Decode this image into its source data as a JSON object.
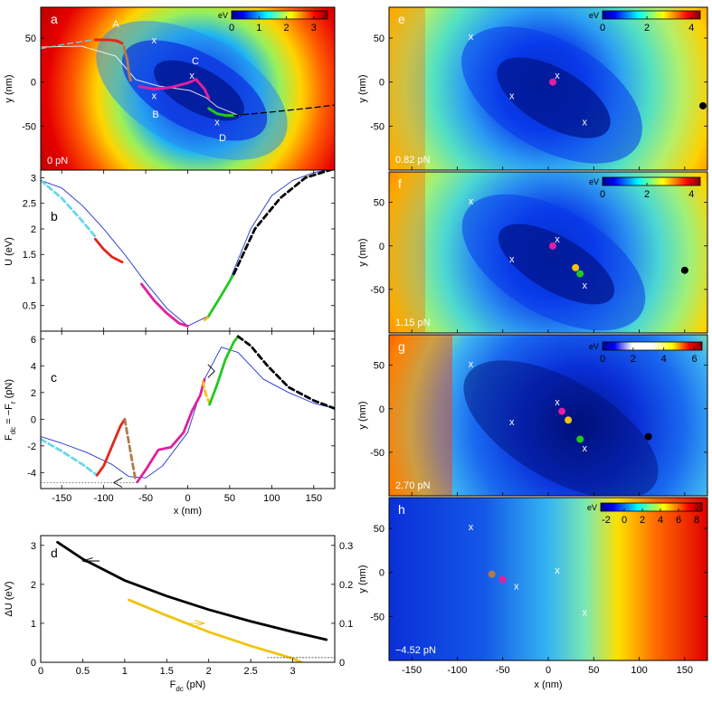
{
  "figure": {
    "left_x_axis": {
      "label": "x (nm)",
      "min": -175,
      "max": 175,
      "ticks": [
        -150,
        -100,
        -50,
        0,
        50,
        100,
        150
      ]
    },
    "right_x_axis": {
      "label": "x (nm)",
      "min": -175,
      "max": 175,
      "ticks": [
        -150,
        -100,
        -50,
        0,
        50,
        100,
        150
      ]
    },
    "map_y_axis": {
      "label": "y (nm)",
      "min": -100,
      "max": 85,
      "ticks": [
        50,
        0,
        -50
      ]
    }
  },
  "chart_data": [
    {
      "panel": "a",
      "type": "heatmap",
      "letter": "a",
      "force_label": "0 pN",
      "colorbar": {
        "unit": "eV",
        "ticks": [
          "0",
          "1",
          "2",
          "3"
        ],
        "min": 0,
        "max": 3.5
      },
      "point_labels": [
        "A",
        "B",
        "C",
        "D"
      ],
      "minima": [
        {
          "label": "A",
          "x": -40,
          "y": 48
        },
        {
          "label": "B",
          "x": -40,
          "y": -15
        },
        {
          "label": "C",
          "x": 5,
          "y": 8
        },
        {
          "label": "D",
          "x": 35,
          "y": -45
        }
      ],
      "paths": [
        {
          "name": "red",
          "color": "#e3261b",
          "x": [
            -110,
            -95,
            -85,
            -78
          ],
          "y": [
            48,
            48,
            47,
            44
          ]
        },
        {
          "name": "brown",
          "color": "#b07a4a",
          "x": [
            -76,
            -72,
            -70,
            -68
          ],
          "y": [
            40,
            25,
            10,
            2
          ]
        },
        {
          "name": "magenta",
          "color": "#e0209f",
          "x": [
            -58,
            -40,
            -20,
            0,
            10,
            20,
            25
          ],
          "y": [
            -5,
            -8,
            -6,
            -1,
            3,
            -8,
            -18
          ]
        },
        {
          "name": "green",
          "color": "#22c81d",
          "x": [
            25,
            35,
            45,
            55
          ],
          "y": [
            -30,
            -36,
            -38,
            -38
          ]
        },
        {
          "name": "dashed-black",
          "color": "#000000",
          "x": [
            55,
            100,
            150,
            175
          ],
          "y": [
            -38,
            -34,
            -29,
            -26
          ]
        },
        {
          "name": "dashed-cyan",
          "color": "#6ad6ea",
          "x": [
            -175,
            -140,
            -112
          ],
          "y": [
            38,
            44,
            48
          ]
        }
      ]
    },
    {
      "panel": "b",
      "type": "line",
      "letter": "b",
      "ylabel": "U (eV)",
      "ylim": [
        0,
        3.15
      ],
      "yticks": [
        "0.5",
        "1",
        "1.5",
        "2",
        "2.5",
        "3"
      ],
      "series": [
        {
          "name": "blue",
          "color": "#2233cc",
          "x": [
            -175,
            -150,
            -125,
            -100,
            -75,
            -50,
            -25,
            0,
            25,
            50,
            75,
            100,
            125,
            150,
            175
          ],
          "y": [
            2.95,
            2.8,
            2.45,
            2.0,
            1.5,
            0.95,
            0.45,
            0.1,
            0.3,
            1.0,
            2.0,
            2.65,
            2.95,
            3.1,
            3.18
          ]
        },
        {
          "name": "cyan-dashed",
          "color": "#6ad6ea",
          "x": [
            -175,
            -150,
            -128,
            -110
          ],
          "y": [
            2.95,
            2.6,
            2.2,
            1.85
          ]
        },
        {
          "name": "red",
          "color": "#e3261b",
          "x": [
            -110,
            -100,
            -90,
            -78
          ],
          "y": [
            1.8,
            1.6,
            1.45,
            1.35
          ]
        },
        {
          "name": "magenta",
          "color": "#e0209f",
          "x": [
            -55,
            -40,
            -25,
            -10,
            0
          ],
          "y": [
            0.92,
            0.6,
            0.35,
            0.15,
            0.1
          ]
        },
        {
          "name": "yellow",
          "color": "#f2c20f",
          "x": [
            20,
            25
          ],
          "y": [
            0.22,
            0.28
          ]
        },
        {
          "name": "green",
          "color": "#22c81d",
          "x": [
            25,
            40,
            55
          ],
          "y": [
            0.3,
            0.7,
            1.12
          ]
        },
        {
          "name": "black-dashed",
          "color": "#000000",
          "x": [
            55,
            80,
            110,
            140,
            175
          ],
          "y": [
            1.12,
            2.0,
            2.6,
            3.0,
            3.18
          ]
        }
      ]
    },
    {
      "panel": "c",
      "type": "line",
      "letter": "c",
      "ylabel_main": "F",
      "ylabel_sub1": "dc",
      "ylabel_mid": " = −F",
      "ylabel_sub2": "r",
      "ylabel_unit": " (pN)",
      "ylim": [
        -5.2,
        6.6
      ],
      "yticks": [
        "6",
        "4",
        "2",
        "0",
        "-2",
        "-4"
      ],
      "xlabel": "x (nm)",
      "series": [
        {
          "name": "blue",
          "color": "#2233cc",
          "x": [
            -175,
            -150,
            -120,
            -90,
            -70,
            -50,
            -30,
            0,
            20,
            40,
            60,
            90,
            120,
            150,
            175
          ],
          "y": [
            -1.3,
            -1.8,
            -2.5,
            -3.4,
            -4.3,
            -4.4,
            -3.5,
            -1.0,
            3.0,
            5.4,
            5.0,
            3.0,
            2.0,
            1.2,
            0.8
          ]
        },
        {
          "name": "cyan-dashed",
          "color": "#6ad6ea",
          "x": [
            -175,
            -150,
            -125,
            -108
          ],
          "y": [
            -1.5,
            -2.4,
            -3.4,
            -4.2
          ]
        },
        {
          "name": "red",
          "color": "#e3261b",
          "x": [
            -108,
            -100,
            -90,
            -80,
            -75
          ],
          "y": [
            -4.2,
            -3.5,
            -2.0,
            -0.5,
            0.0
          ]
        },
        {
          "name": "brown-dashed",
          "color": "#b07a4a",
          "x": [
            -75,
            -68,
            -62
          ],
          "y": [
            0.0,
            -2.5,
            -4.6
          ]
        },
        {
          "name": "magenta",
          "color": "#e0209f",
          "x": [
            -60,
            -50,
            -35,
            -20,
            -5,
            5,
            15,
            20
          ],
          "y": [
            -4.7,
            -3.8,
            -2.3,
            -2.1,
            -1.0,
            0.6,
            1.8,
            3.0
          ]
        },
        {
          "name": "yellow-dashed",
          "color": "#f2c20f",
          "x": [
            18,
            22,
            26
          ],
          "y": [
            2.8,
            1.8,
            1.2
          ]
        },
        {
          "name": "green",
          "color": "#22c81d",
          "x": [
            26,
            35,
            45,
            55,
            60
          ],
          "y": [
            1.1,
            2.6,
            4.5,
            5.8,
            6.2
          ]
        },
        {
          "name": "black-dashed",
          "color": "#000000",
          "x": [
            60,
            75,
            95,
            120,
            150,
            175
          ],
          "y": [
            6.2,
            5.5,
            4.0,
            2.4,
            1.4,
            0.8
          ]
        }
      ]
    },
    {
      "panel": "d",
      "type": "line",
      "letter": "d",
      "ylabel": "ΔU (eV)",
      "xlabel_main": "F",
      "xlabel_sub": "dc",
      "xlabel_unit": " (pN)",
      "xlim": [
        0,
        3.5
      ],
      "xticks": [
        "0",
        "0.5",
        "1",
        "1.5",
        "2",
        "2.5",
        "3"
      ],
      "ylim": [
        0,
        3.25
      ],
      "yticks": [
        "0",
        "1",
        "2",
        "3"
      ],
      "y2lim": [
        0,
        0.325
      ],
      "y2ticks": [
        "0",
        "0.1",
        "0.2",
        "0.3"
      ],
      "series": [
        {
          "name": "black",
          "color": "#000000",
          "axis": "left",
          "x": [
            0.2,
            0.5,
            1.0,
            1.5,
            2.0,
            2.5,
            3.0,
            3.4
          ],
          "y": [
            3.08,
            2.65,
            2.1,
            1.7,
            1.35,
            1.05,
            0.78,
            0.58
          ]
        },
        {
          "name": "yellow",
          "color": "#f2c20f",
          "axis": "right",
          "x": [
            1.05,
            1.5,
            2.0,
            2.5,
            3.0,
            3.1
          ],
          "y": [
            0.16,
            0.12,
            0.078,
            0.042,
            0.01,
            0.0
          ]
        },
        {
          "name": "dotted-ref",
          "color": "#555555",
          "axis": "right",
          "x": [
            2.7,
            3.5
          ],
          "y": [
            0.012,
            0.012
          ]
        }
      ]
    },
    {
      "panel": "e",
      "type": "heatmap",
      "letter": "e",
      "force_label": "0.82 pN",
      "colorbar": {
        "unit": "eV",
        "ticks": [
          "0",
          "2",
          "4"
        ],
        "min": 0,
        "max": 4.4
      },
      "minima": [
        {
          "x": -85,
          "y": 52
        },
        {
          "x": 10,
          "y": 8
        },
        {
          "x": -40,
          "y": -15
        },
        {
          "x": 40,
          "y": -45
        }
      ],
      "dots": [
        {
          "color": "#e0209f",
          "x": 5,
          "y": 0
        },
        {
          "color": "#000000",
          "x": 170,
          "y": -27
        }
      ]
    },
    {
      "panel": "f",
      "type": "heatmap",
      "letter": "f",
      "force_label": "1.15 pN",
      "colorbar": {
        "unit": "eV",
        "ticks": [
          "0",
          "2",
          "4"
        ],
        "min": 0,
        "max": 4.4
      },
      "minima": [
        {
          "x": -85,
          "y": 52
        },
        {
          "x": 10,
          "y": 8
        },
        {
          "x": -40,
          "y": -15
        },
        {
          "x": 40,
          "y": -45
        }
      ],
      "dots": [
        {
          "color": "#e0209f",
          "x": 5,
          "y": 0
        },
        {
          "color": "#f2c20f",
          "x": 30,
          "y": -25
        },
        {
          "color": "#22c81d",
          "x": 35,
          "y": -32
        },
        {
          "color": "#000000",
          "x": 150,
          "y": -28
        }
      ]
    },
    {
      "panel": "g",
      "type": "heatmap",
      "letter": "g",
      "force_label": "2.70 pN",
      "colorbar": {
        "unit": "eV",
        "ticks": [
          "0",
          "2",
          "4",
          "6"
        ],
        "min": 0,
        "max": 6.5
      },
      "minima": [
        {
          "x": -85,
          "y": 52
        },
        {
          "x": 10,
          "y": 8
        },
        {
          "x": -40,
          "y": -15
        },
        {
          "x": 40,
          "y": -45
        }
      ],
      "dots": [
        {
          "color": "#e0209f",
          "x": 15,
          "y": -3
        },
        {
          "color": "#f2c20f",
          "x": 22,
          "y": -13
        },
        {
          "color": "#22c81d",
          "x": 35,
          "y": -35
        },
        {
          "color": "#000000",
          "x": 110,
          "y": -32
        }
      ]
    },
    {
      "panel": "h",
      "type": "heatmap",
      "letter": "h",
      "force_label": "−4.52 pN",
      "colorbar": {
        "unit": "eV",
        "ticks": [
          "-2",
          "0",
          "2",
          "4",
          "6",
          "8"
        ],
        "min": -2.6,
        "max": 8.6
      },
      "minima": [
        {
          "x": -85,
          "y": 52
        },
        {
          "x": 10,
          "y": 3
        },
        {
          "x": -35,
          "y": -15
        },
        {
          "x": 40,
          "y": -45
        }
      ],
      "dots": [
        {
          "color": "#b07a4a",
          "x": -62,
          "y": -2
        },
        {
          "color": "#e0209f",
          "x": -50,
          "y": -8
        }
      ]
    }
  ]
}
